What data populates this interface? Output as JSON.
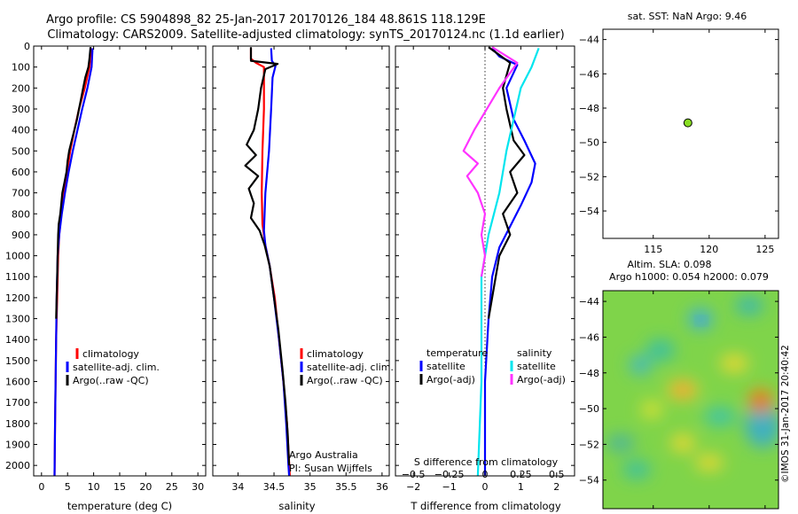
{
  "figure": {
    "title_line1": "Argo profile: CS 5904898_82 25-Jan-2017 20170126_184 48.861S 118.129E",
    "title_line2": "Climatology: CARS2009. Satellite-adjusted climatology: synTS_20170124.nc (1.1d earlier)",
    "credit_line1": "Argo Australia",
    "credit_line2": "PI: Susan Wijffels",
    "footer": "©IMOS 31-Jan-2017 20:40:42"
  },
  "colors": {
    "red": "#ff0000",
    "blue": "#0000ff",
    "black": "#000000",
    "cyan": "#00e5ee",
    "magenta": "#ff33ff",
    "green_dot": "#88dd22"
  },
  "chart_data": [
    {
      "id": "temperature",
      "type": "line",
      "xlabel": "temperature (deg C)",
      "ylim": [
        2050,
        0
      ],
      "xlim": [
        -1.5,
        31.5
      ],
      "xticks": [
        0,
        5,
        10,
        15,
        20,
        25,
        30
      ],
      "yticks": [
        0,
        100,
        200,
        300,
        400,
        500,
        600,
        700,
        800,
        900,
        1000,
        1100,
        1200,
        1300,
        1400,
        1500,
        1600,
        1700,
        1800,
        1900,
        2000
      ],
      "legend": [
        "climatology",
        "satellite-adj. clim.",
        "Argo(..raw -QC)"
      ],
      "series": [
        {
          "name": "climatology",
          "color": "#ff0000",
          "points": [
            [
              9.5,
              10
            ],
            [
              9.2,
              100
            ],
            [
              8.3,
              200
            ],
            [
              7.2,
              300
            ],
            [
              6.3,
              400
            ],
            [
              5.5,
              500
            ],
            [
              4.9,
              600
            ],
            [
              4.3,
              700
            ],
            [
              3.8,
              800
            ],
            [
              3.4,
              900
            ],
            [
              3.2,
              1000
            ],
            [
              3.0,
              1200
            ],
            [
              2.8,
              1400
            ],
            [
              2.7,
              1600
            ],
            [
              2.6,
              1800
            ],
            [
              2.5,
              2050
            ]
          ]
        },
        {
          "name": "satellite-adj. clim.",
          "color": "#0000ff",
          "points": [
            [
              9.8,
              10
            ],
            [
              9.6,
              100
            ],
            [
              8.8,
              200
            ],
            [
              7.8,
              300
            ],
            [
              6.9,
              400
            ],
            [
              6.0,
              500
            ],
            [
              5.2,
              600
            ],
            [
              4.5,
              700
            ],
            [
              3.9,
              800
            ],
            [
              3.4,
              900
            ],
            [
              3.1,
              1000
            ],
            [
              2.9,
              1200
            ],
            [
              2.8,
              1400
            ],
            [
              2.7,
              1600
            ],
            [
              2.6,
              1800
            ],
            [
              2.5,
              2050
            ]
          ]
        },
        {
          "name": "Argo(..raw -QC)",
          "color": "#000000",
          "points": [
            [
              9.4,
              5
            ],
            [
              9.2,
              60
            ],
            [
              9.0,
              100
            ],
            [
              8.4,
              150
            ],
            [
              8.0,
              200
            ],
            [
              7.6,
              250
            ],
            [
              7.2,
              300
            ],
            [
              6.8,
              350
            ],
            [
              6.3,
              400
            ],
            [
              5.8,
              450
            ],
            [
              5.3,
              500
            ],
            [
              5.0,
              550
            ],
            [
              4.8,
              600
            ],
            [
              4.4,
              650
            ],
            [
              4.0,
              700
            ],
            [
              3.8,
              750
            ],
            [
              3.6,
              800
            ],
            [
              3.3,
              850
            ],
            [
              3.2,
              900
            ],
            [
              3.1,
              1000
            ],
            [
              3.0,
              1100
            ],
            [
              2.9,
              1200
            ],
            [
              2.8,
              1300
            ]
          ]
        }
      ]
    },
    {
      "id": "salinity",
      "type": "line",
      "xlabel": "salinity",
      "ylim": [
        2050,
        0
      ],
      "xlim": [
        33.65,
        36.1
      ],
      "xticks": [
        34,
        34.5,
        35,
        35.5,
        36
      ],
      "legend": [
        "climatology",
        "satellite-adj. clim.",
        "Argo(..raw -QC)"
      ],
      "series": [
        {
          "name": "climatology",
          "color": "#ff0000",
          "points": [
            [
              34.18,
              10
            ],
            [
              34.18,
              60
            ],
            [
              34.25,
              80
            ],
            [
              34.36,
              100
            ],
            [
              34.36,
              300
            ],
            [
              34.34,
              500
            ],
            [
              34.33,
              700
            ],
            [
              34.34,
              850
            ],
            [
              34.38,
              950
            ],
            [
              34.44,
              1050
            ],
            [
              34.51,
              1200
            ],
            [
              34.57,
              1400
            ],
            [
              34.63,
              1600
            ],
            [
              34.68,
              1800
            ],
            [
              34.72,
              2050
            ]
          ]
        },
        {
          "name": "satellite-adj. clim.",
          "color": "#0000ff",
          "points": [
            [
              34.46,
              10
            ],
            [
              34.47,
              70
            ],
            [
              34.52,
              95
            ],
            [
              34.48,
              150
            ],
            [
              34.46,
              300
            ],
            [
              34.43,
              500
            ],
            [
              34.38,
              700
            ],
            [
              34.36,
              880
            ],
            [
              34.38,
              950
            ],
            [
              34.44,
              1050
            ],
            [
              34.5,
              1200
            ],
            [
              34.57,
              1400
            ],
            [
              34.63,
              1600
            ],
            [
              34.67,
              1800
            ],
            [
              34.7,
              2000
            ],
            [
              34.71,
              2050
            ]
          ]
        },
        {
          "name": "Argo(..raw -QC)",
          "color": "#000000",
          "points": [
            [
              34.18,
              5
            ],
            [
              34.18,
              70
            ],
            [
              34.55,
              85
            ],
            [
              34.38,
              110
            ],
            [
              34.32,
              200
            ],
            [
              34.28,
              300
            ],
            [
              34.22,
              400
            ],
            [
              34.12,
              470
            ],
            [
              34.25,
              520
            ],
            [
              34.1,
              570
            ],
            [
              34.28,
              620
            ],
            [
              34.15,
              680
            ],
            [
              34.22,
              750
            ],
            [
              34.18,
              820
            ],
            [
              34.3,
              880
            ],
            [
              34.37,
              950
            ],
            [
              34.44,
              1050
            ],
            [
              34.5,
              1200
            ],
            [
              34.56,
              1350
            ],
            [
              34.62,
              1550
            ],
            [
              34.66,
              1700
            ],
            [
              34.69,
              1850
            ],
            [
              34.71,
              2000
            ]
          ]
        }
      ]
    },
    {
      "id": "difference",
      "type": "line",
      "xlabel": "T difference from climatology",
      "xlabel_top": "S difference from climatology",
      "ylim": [
        2050,
        0
      ],
      "xlim": [
        -2.5,
        2.5
      ],
      "xticks": [
        -2,
        -1,
        0,
        1,
        2
      ],
      "xticks_top": [
        -0.5,
        -0.25,
        0,
        0.25,
        0.5
      ],
      "legend_groups": [
        {
          "title": "temperature",
          "items": [
            {
              "label": "satellite",
              "color": "#0000ff"
            },
            {
              "label": "Argo(-adj)",
              "color": "#000000"
            }
          ]
        },
        {
          "title": "salinity",
          "items": [
            {
              "label": "satellite",
              "color": "#00e5ee"
            },
            {
              "label": "Argo(-adj)",
              "color": "#ff33ff"
            }
          ]
        }
      ],
      "series": [
        {
          "name": "temperature satellite",
          "color": "#0000ff",
          "points": [
            [
              0.2,
              10
            ],
            [
              0.4,
              50
            ],
            [
              0.9,
              90
            ],
            [
              0.6,
              200
            ],
            [
              0.8,
              350
            ],
            [
              1.1,
              450
            ],
            [
              1.4,
              560
            ],
            [
              1.3,
              650
            ],
            [
              1.0,
              760
            ],
            [
              0.7,
              860
            ],
            [
              0.4,
              960
            ],
            [
              0.2,
              1100
            ],
            [
              0.1,
              1300
            ],
            [
              0.0,
              1600
            ],
            [
              0.0,
              2050
            ]
          ]
        },
        {
          "name": "temperature Argo(-adj)",
          "color": "#000000",
          "points": [
            [
              0.1,
              5
            ],
            [
              0.7,
              80
            ],
            [
              0.5,
              200
            ],
            [
              0.6,
              300
            ],
            [
              0.8,
              450
            ],
            [
              1.1,
              520
            ],
            [
              0.7,
              600
            ],
            [
              0.9,
              700
            ],
            [
              0.5,
              800
            ],
            [
              0.7,
              900
            ],
            [
              0.4,
              1000
            ],
            [
              0.3,
              1100
            ],
            [
              0.1,
              1300
            ]
          ]
        },
        {
          "name": "salinity satellite",
          "color": "#00e5ee",
          "points": [
            [
              1.5,
              10
            ],
            [
              1.3,
              100
            ],
            [
              1.0,
              200
            ],
            [
              0.8,
              350
            ],
            [
              0.6,
              500
            ],
            [
              0.4,
              700
            ],
            [
              0.1,
              900
            ],
            [
              -0.1,
              1100
            ],
            [
              -0.1,
              1300
            ],
            [
              -0.1,
              1600
            ],
            [
              -0.2,
              2050
            ]
          ]
        },
        {
          "name": "salinity Argo(-adj)",
          "color": "#ff33ff",
          "points": [
            [
              0.2,
              5
            ],
            [
              0.9,
              80
            ],
            [
              0.4,
              200
            ],
            [
              -0.3,
              400
            ],
            [
              -0.6,
              500
            ],
            [
              -0.2,
              560
            ],
            [
              -0.5,
              620
            ],
            [
              -0.2,
              700
            ],
            [
              0.0,
              800
            ],
            [
              -0.1,
              900
            ],
            [
              0.0,
              1000
            ],
            [
              -0.1,
              1100
            ]
          ]
        }
      ]
    },
    {
      "id": "map_sst",
      "type": "scatter",
      "title": "sat. SST: NaN Argo: 9.46",
      "xlim": [
        110.5,
        126.2
      ],
      "ylim": [
        -55.6,
        -43.4
      ],
      "xticks": [
        115,
        120,
        125
      ],
      "yticks": [
        -44,
        -46,
        -48,
        -50,
        -52,
        -54
      ],
      "points": [
        [
          118.1,
          -48.86
        ]
      ]
    },
    {
      "id": "map_sla",
      "type": "heatmap",
      "title_line1": "Altim. SLA: 0.098",
      "title_line2": "Argo h1000: 0.054 h2000: 0.079",
      "xlim": [
        110.5,
        126.2
      ],
      "ylim": [
        -55.6,
        -43.4
      ],
      "xticks": [
        115,
        120,
        125
      ],
      "yticks": [
        -44,
        -46,
        -48,
        -50,
        -52,
        -54
      ]
    }
  ]
}
